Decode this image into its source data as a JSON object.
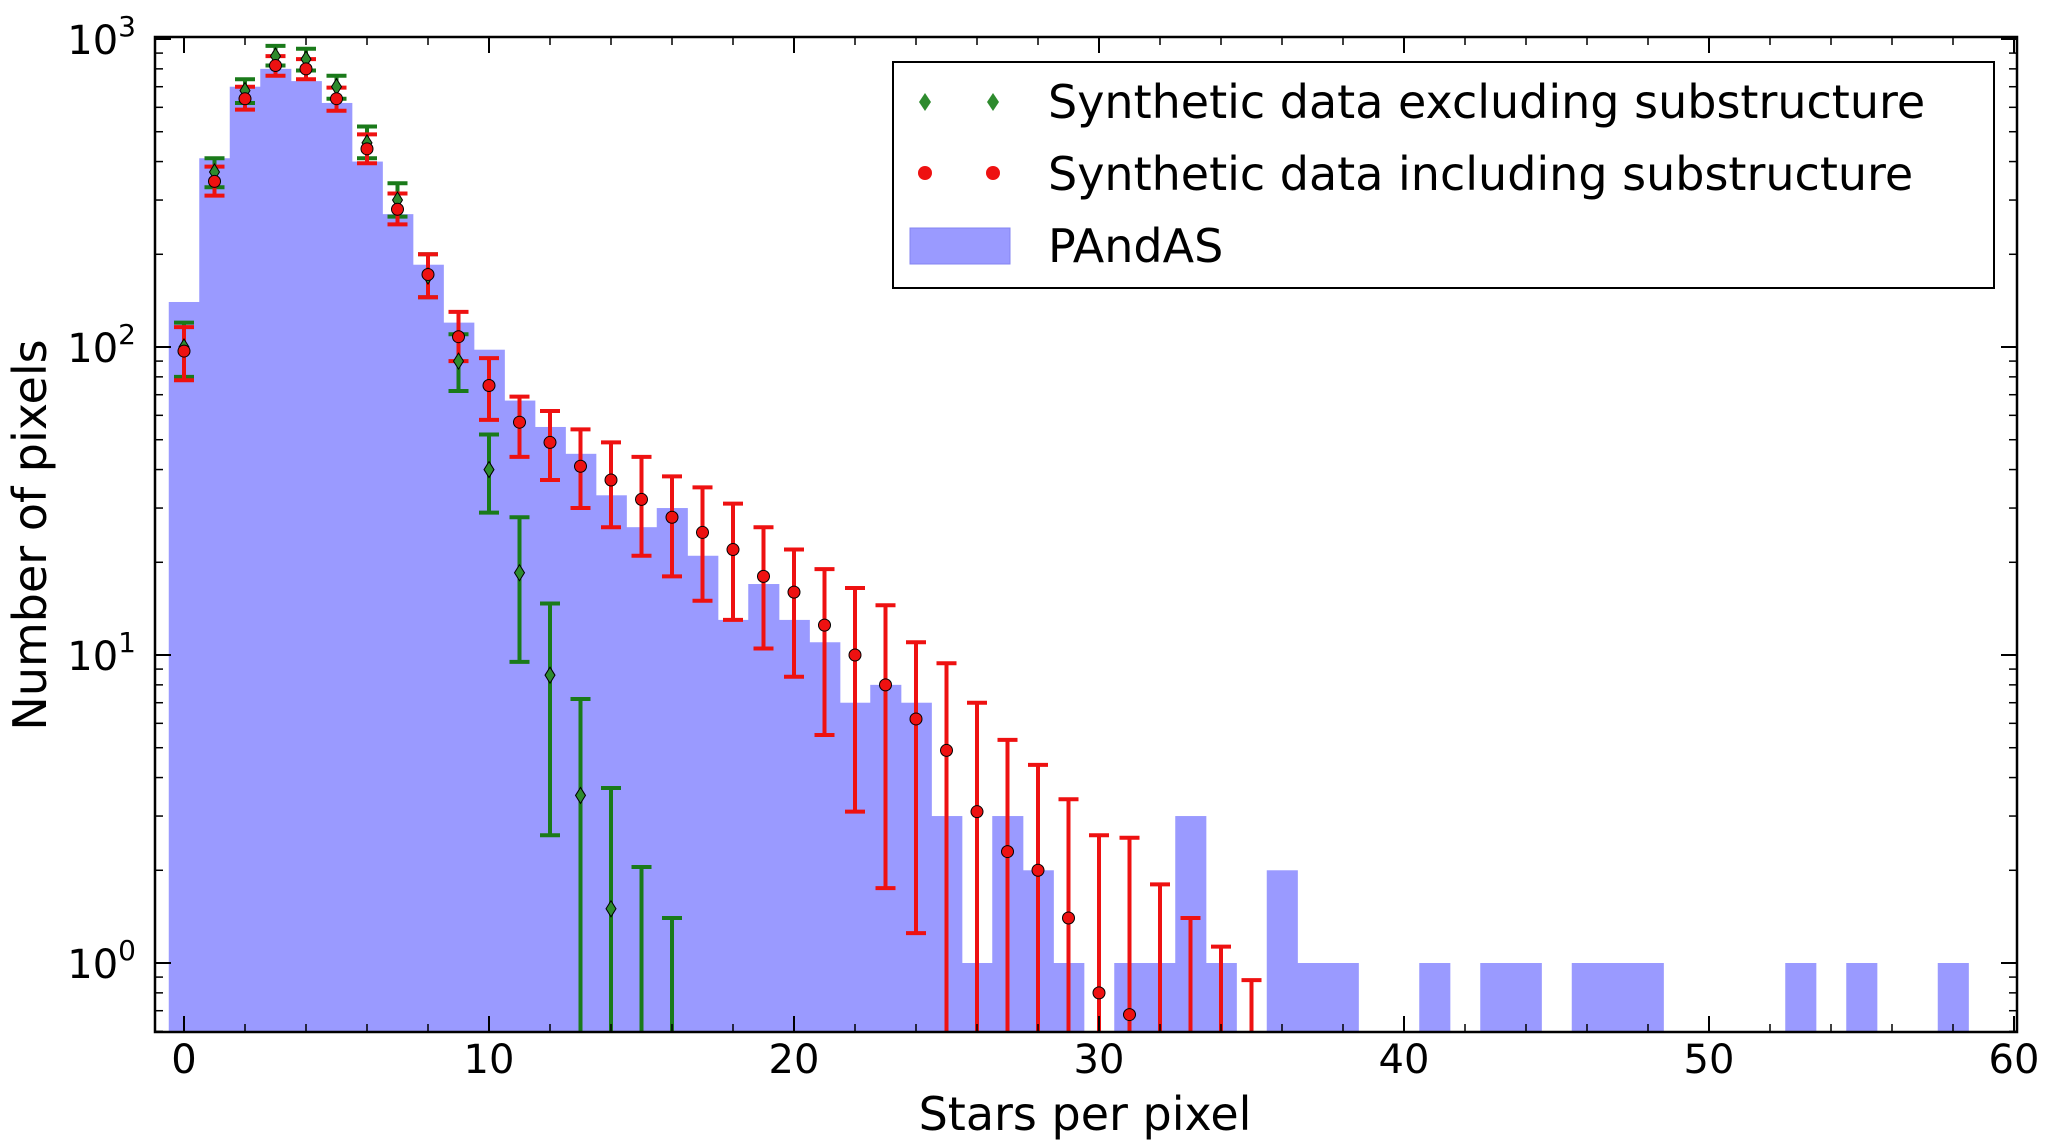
{
  "chart_data": {
    "type": "bar",
    "xlabel": "Stars per pixel",
    "ylabel": "Number of pixels",
    "x_scale": "linear",
    "y_scale": "log",
    "xlim": [
      -1,
      60
    ],
    "ylim": [
      0.6,
      1000
    ],
    "xticks": [
      0,
      10,
      20,
      30,
      40,
      50,
      60
    ],
    "yticks": [
      {
        "value": 1,
        "base": "10",
        "exp": "0"
      },
      {
        "value": 10,
        "base": "10",
        "exp": "1"
      },
      {
        "value": 100,
        "base": "10",
        "exp": "2"
      },
      {
        "value": 1000,
        "base": "10",
        "exp": "3"
      }
    ],
    "legend": {
      "placement": "upper-right",
      "entries": [
        {
          "label": "Synthetic data excluding substructure",
          "series": "excl"
        },
        {
          "label": "Synthetic data including substructure",
          "series": "incl"
        },
        {
          "label": "PAndAS",
          "series": "pandas"
        }
      ]
    },
    "histogram": {
      "name": "PAndAS",
      "color": "#9a9aff",
      "bin_width": 1,
      "bins": [
        {
          "x": 0,
          "v": 140
        },
        {
          "x": 1,
          "v": 410
        },
        {
          "x": 2,
          "v": 700
        },
        {
          "x": 3,
          "v": 800
        },
        {
          "x": 4,
          "v": 730
        },
        {
          "x": 5,
          "v": 620
        },
        {
          "x": 6,
          "v": 400
        },
        {
          "x": 7,
          "v": 270
        },
        {
          "x": 8,
          "v": 185
        },
        {
          "x": 9,
          "v": 120
        },
        {
          "x": 10,
          "v": 98
        },
        {
          "x": 11,
          "v": 67
        },
        {
          "x": 12,
          "v": 55
        },
        {
          "x": 13,
          "v": 45
        },
        {
          "x": 14,
          "v": 33
        },
        {
          "x": 15,
          "v": 26
        },
        {
          "x": 16,
          "v": 30
        },
        {
          "x": 17,
          "v": 21
        },
        {
          "x": 18,
          "v": 13
        },
        {
          "x": 19,
          "v": 17
        },
        {
          "x": 20,
          "v": 13
        },
        {
          "x": 21,
          "v": 11
        },
        {
          "x": 22,
          "v": 7
        },
        {
          "x": 23,
          "v": 8
        },
        {
          "x": 24,
          "v": 7
        },
        {
          "x": 25,
          "v": 3
        },
        {
          "x": 26,
          "v": 1
        },
        {
          "x": 27,
          "v": 3
        },
        {
          "x": 28,
          "v": 2
        },
        {
          "x": 29,
          "v": 1
        },
        {
          "x": 31,
          "v": 1
        },
        {
          "x": 32,
          "v": 1
        },
        {
          "x": 33,
          "v": 3
        },
        {
          "x": 34,
          "v": 1
        },
        {
          "x": 36,
          "v": 2
        },
        {
          "x": 37,
          "v": 1
        },
        {
          "x": 38,
          "v": 1
        },
        {
          "x": 41,
          "v": 1
        },
        {
          "x": 43,
          "v": 1
        },
        {
          "x": 44,
          "v": 1
        },
        {
          "x": 46,
          "v": 1
        },
        {
          "x": 47,
          "v": 1
        },
        {
          "x": 48,
          "v": 1
        },
        {
          "x": 53,
          "v": 1
        },
        {
          "x": 55,
          "v": 1
        },
        {
          "x": 58,
          "v": 1
        }
      ]
    },
    "series": [
      {
        "name": "Synthetic data excluding substructure",
        "key": "excl",
        "marker": "diamond",
        "color": "#2e8b2e",
        "errcolor": "#1a7a1a",
        "points": [
          {
            "x": 0,
            "y": 100,
            "lo": 80,
            "hi": 120
          },
          {
            "x": 1,
            "y": 370,
            "lo": 330,
            "hi": 410
          },
          {
            "x": 2,
            "y": 680,
            "lo": 620,
            "hi": 740
          },
          {
            "x": 3,
            "y": 880,
            "lo": 820,
            "hi": 950
          },
          {
            "x": 4,
            "y": 860,
            "lo": 790,
            "hi": 930
          },
          {
            "x": 5,
            "y": 700,
            "lo": 640,
            "hi": 760
          },
          {
            "x": 6,
            "y": 460,
            "lo": 410,
            "hi": 520
          },
          {
            "x": 7,
            "y": 300,
            "lo": 265,
            "hi": 340
          },
          {
            "x": 8,
            "y": 170,
            "lo": 145,
            "hi": 200
          },
          {
            "x": 9,
            "y": 90,
            "lo": 72,
            "hi": 110
          },
          {
            "x": 10,
            "y": 40,
            "lo": 29,
            "hi": 52
          },
          {
            "x": 11,
            "y": 18.5,
            "lo": 9.5,
            "hi": 28
          },
          {
            "x": 12,
            "y": 8.6,
            "lo": 2.6,
            "hi": 14.7
          },
          {
            "x": 13,
            "y": 3.5,
            "lo": null,
            "hi": 7.2
          },
          {
            "x": 14,
            "y": 1.5,
            "lo": null,
            "hi": 3.7
          },
          {
            "x": 15,
            "y": null,
            "lo": null,
            "hi": 2.05
          },
          {
            "x": 16,
            "y": null,
            "lo": null,
            "hi": 1.4
          }
        ]
      },
      {
        "name": "Synthetic data including substructure",
        "key": "incl",
        "marker": "circle",
        "color": "#ee1111",
        "errcolor": "#ee1111",
        "points": [
          {
            "x": 0,
            "y": 97,
            "lo": 78,
            "hi": 116
          },
          {
            "x": 1,
            "y": 345,
            "lo": 310,
            "hi": 385
          },
          {
            "x": 2,
            "y": 640,
            "lo": 590,
            "hi": 700
          },
          {
            "x": 3,
            "y": 820,
            "lo": 760,
            "hi": 880
          },
          {
            "x": 4,
            "y": 800,
            "lo": 740,
            "hi": 860
          },
          {
            "x": 5,
            "y": 640,
            "lo": 585,
            "hi": 695
          },
          {
            "x": 6,
            "y": 440,
            "lo": 395,
            "hi": 490
          },
          {
            "x": 7,
            "y": 280,
            "lo": 250,
            "hi": 315
          },
          {
            "x": 8,
            "y": 172,
            "lo": 145,
            "hi": 200
          },
          {
            "x": 9,
            "y": 108,
            "lo": 90,
            "hi": 130
          },
          {
            "x": 10,
            "y": 75,
            "lo": 58,
            "hi": 92
          },
          {
            "x": 11,
            "y": 57,
            "lo": 44,
            "hi": 69
          },
          {
            "x": 12,
            "y": 49,
            "lo": 37,
            "hi": 62
          },
          {
            "x": 13,
            "y": 41,
            "lo": 30,
            "hi": 54
          },
          {
            "x": 14,
            "y": 37,
            "lo": 26,
            "hi": 49
          },
          {
            "x": 15,
            "y": 32,
            "lo": 21,
            "hi": 44
          },
          {
            "x": 16,
            "y": 28,
            "lo": 18,
            "hi": 38
          },
          {
            "x": 17,
            "y": 25,
            "lo": 15,
            "hi": 35
          },
          {
            "x": 18,
            "y": 22,
            "lo": 13,
            "hi": 31
          },
          {
            "x": 19,
            "y": 18,
            "lo": 10.5,
            "hi": 26
          },
          {
            "x": 20,
            "y": 16,
            "lo": 8.5,
            "hi": 22
          },
          {
            "x": 21,
            "y": 12.5,
            "lo": 5.5,
            "hi": 19
          },
          {
            "x": 22,
            "y": 10,
            "lo": 3.1,
            "hi": 16.5
          },
          {
            "x": 23,
            "y": 8,
            "lo": 1.75,
            "hi": 14.5
          },
          {
            "x": 24,
            "y": 6.2,
            "lo": 1.25,
            "hi": 11
          },
          {
            "x": 25,
            "y": 4.9,
            "lo": null,
            "hi": 9.4
          },
          {
            "x": 26,
            "y": 3.1,
            "lo": null,
            "hi": 7
          },
          {
            "x": 27,
            "y": 2.3,
            "lo": null,
            "hi": 5.3
          },
          {
            "x": 28,
            "y": 2,
            "lo": null,
            "hi": 4.4
          },
          {
            "x": 29,
            "y": 1.4,
            "lo": null,
            "hi": 3.4
          },
          {
            "x": 30,
            "y": 0.8,
            "lo": null,
            "hi": 2.6
          },
          {
            "x": 31,
            "y": 0.68,
            "lo": null,
            "hi": 2.55
          },
          {
            "x": 32,
            "y": null,
            "lo": null,
            "hi": 1.8
          },
          {
            "x": 33,
            "y": null,
            "lo": null,
            "hi": 1.4
          },
          {
            "x": 34,
            "y": null,
            "lo": null,
            "hi": 1.13
          },
          {
            "x": 35,
            "y": null,
            "lo": null,
            "hi": 0.88
          }
        ]
      }
    ]
  }
}
